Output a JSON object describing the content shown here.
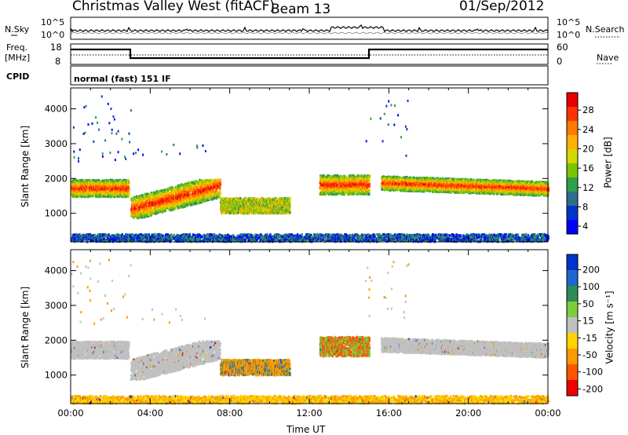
{
  "header": {
    "station": "Christmas Valley West (fitACF)",
    "beam": "Beam 13",
    "date": "01/Sep/2012"
  },
  "noise_panel": {
    "left_label": "N.Sky",
    "right_label": "N.Search",
    "left_ticks": [
      "10^5",
      "10^0"
    ],
    "right_ticks": [
      "10^5",
      "10^0"
    ]
  },
  "freq_panel": {
    "left_label_line1": "Freq.",
    "left_label_line2": "[MHz]",
    "right_label": "Nave",
    "left_ticks": [
      "18",
      "8"
    ],
    "right_ticks": [
      "60",
      "0"
    ]
  },
  "cpid": {
    "label": "CPID",
    "value": "normal (fast) 151 IF"
  },
  "chart_data": [
    {
      "type": "heatmap",
      "name": "power",
      "ylabel": "Slant Range [km]",
      "y_ticks": [
        1000,
        2000,
        3000,
        4000
      ],
      "ylim": [
        180,
        4600
      ],
      "colorbar_label": "Power [dB]",
      "colorbar_ticks": [
        "28",
        "24",
        "20",
        "16",
        "12",
        "8",
        "4"
      ],
      "colorbar_colors": [
        "#e60000",
        "#ff3300",
        "#ff7a00",
        "#ffb000",
        "#d6d600",
        "#7ac400",
        "#2f9e4f",
        "#2f6e8a",
        "#0033cc",
        "#0000ff"
      ]
    },
    {
      "type": "heatmap",
      "name": "velocity",
      "ylabel": "Slant Range [km]",
      "y_ticks": [
        1000,
        2000,
        3000,
        4000
      ],
      "ylim": [
        180,
        4600
      ],
      "colorbar_label": "Velocity [m s⁻¹]",
      "colorbar_ticks": [
        "200",
        "100",
        "50",
        "15",
        "-15",
        "-50",
        "-100",
        "-200"
      ],
      "colorbar_colors": [
        "#0033cc",
        "#1f66cc",
        "#2e8b57",
        "#7ccd3c",
        "#c0c0c0",
        "#ffd400",
        "#ff9900",
        "#ff5500",
        "#ee0000"
      ]
    }
  ],
  "x_axis": {
    "label": "Time UT",
    "ticks": [
      "00:00",
      "04:00",
      "08:00",
      "12:00",
      "16:00",
      "20:00",
      "00:00"
    ]
  }
}
